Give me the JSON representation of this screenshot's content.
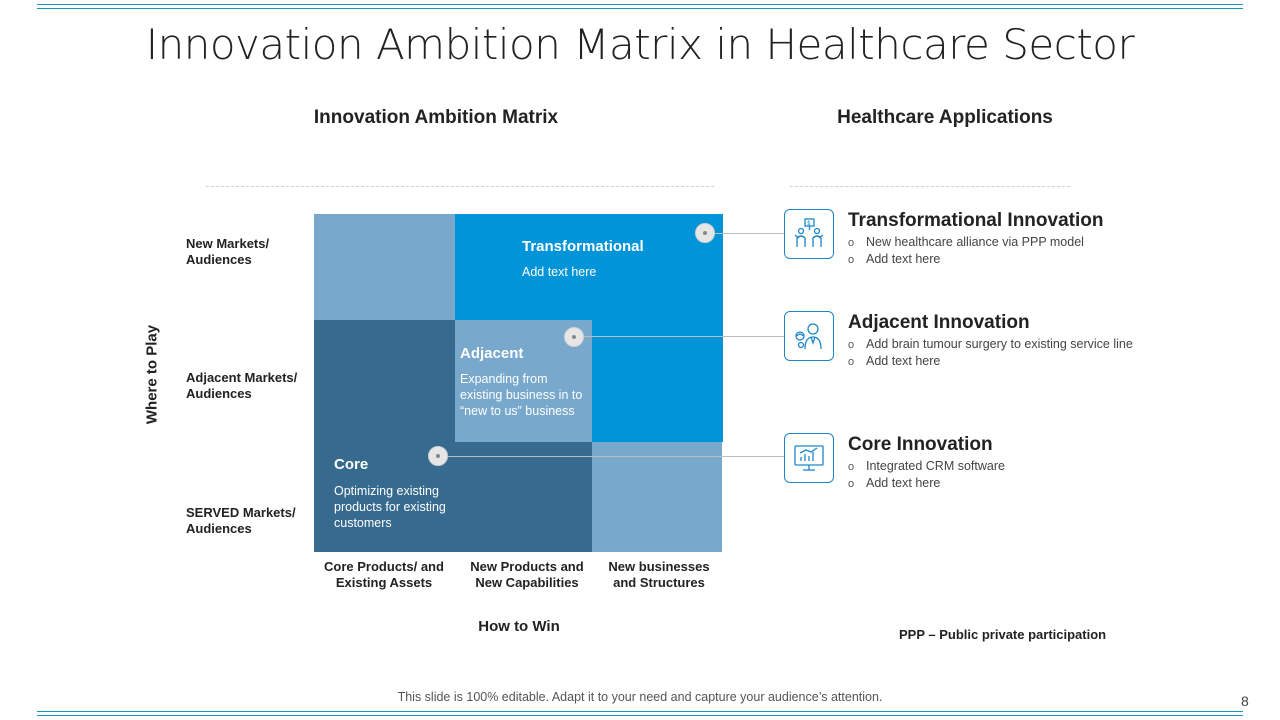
{
  "title": "Innovation Ambition Matrix in Healthcare Sector",
  "matrix": {
    "heading": "Innovation Ambition Matrix",
    "y_axis_label": "Where to Play",
    "x_axis_label": "How to Win",
    "row_labels": [
      "New Markets/ Audiences",
      "Adjacent Markets/ Audiences",
      "SERVED Markets/ Audiences"
    ],
    "col_labels": [
      "Core Products/ and Existing Assets",
      "New Products and New Capabilities",
      "New businesses and Structures"
    ],
    "transformational": {
      "title": "Transformational",
      "text": "Add text here"
    },
    "adjacent": {
      "title": "Adjacent",
      "text": "Expanding from existing business in to “new to us” business"
    },
    "core": {
      "title": "Core",
      "text": "Optimizing existing products for existing customers"
    },
    "colors": {
      "light": "#78a8cc",
      "bright": "#0294d8",
      "dark": "#366a8e",
      "mid": "#78a8cc"
    }
  },
  "applications": {
    "heading": "Healthcare Applications",
    "items": [
      {
        "title": "Transformational Innovation",
        "icon": "team-flag-icon",
        "bullets": [
          "New healthcare alliance via PPP model",
          "Add text here"
        ]
      },
      {
        "title": "Adjacent Innovation",
        "icon": "doctor-brain-icon",
        "bullets": [
          "Add brain tumour surgery to existing service line",
          "Add text here"
        ]
      },
      {
        "title": "Core Innovation",
        "icon": "monitor-chart-icon",
        "bullets": [
          "Integrated CRM software",
          "Add text here"
        ]
      }
    ],
    "note": "PPP – Public private participation"
  },
  "footer": "This slide is 100% editable. Adapt it to your need and capture your audience’s attention.",
  "page_number": "8"
}
